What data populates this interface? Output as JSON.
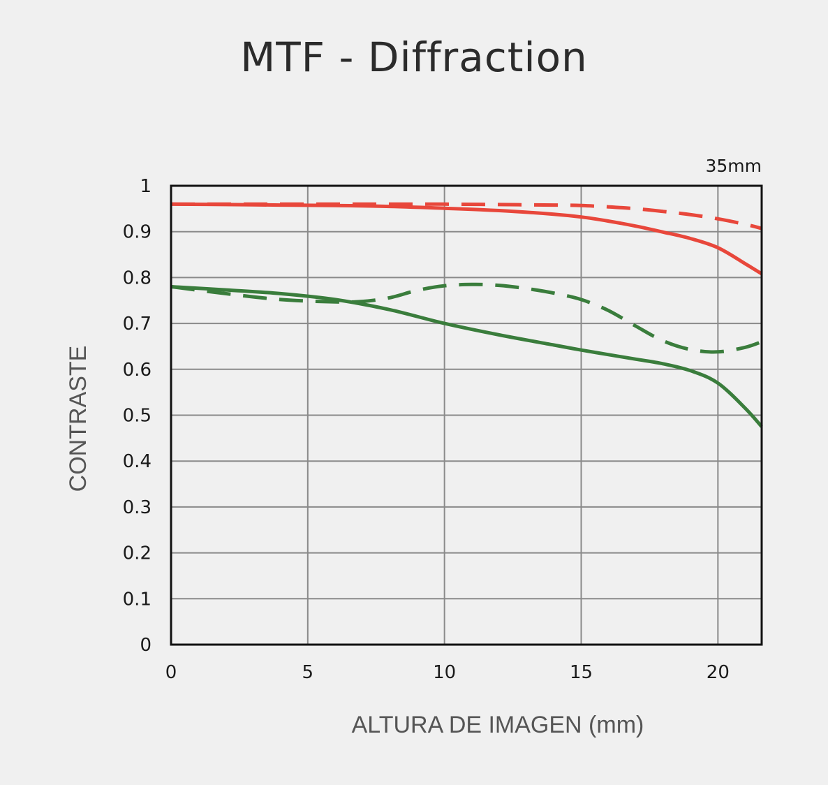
{
  "chart_data": {
    "type": "line",
    "title": "MTF - Diffraction",
    "xlabel": "ALTURA DE IMAGEN (mm)",
    "ylabel": "CONTRASTE",
    "corner_label": "35mm",
    "xlim": [
      0,
      21.6
    ],
    "ylim": [
      0,
      1
    ],
    "x_ticks": [
      "0",
      "5",
      "10",
      "15",
      "20"
    ],
    "y_ticks": [
      "0",
      "0.1",
      "0.2",
      "0.3",
      "0.4",
      "0.5",
      "0.6",
      "0.7",
      "0.8",
      "0.9",
      "1"
    ],
    "grid": true,
    "series": [
      {
        "color": "#e8473b",
        "style": "solid",
        "x": [
          0,
          2,
          4,
          6,
          8,
          10,
          12,
          14,
          15,
          16,
          17,
          18,
          19,
          20,
          21,
          21.6
        ],
        "y": [
          0.96,
          0.959,
          0.958,
          0.957,
          0.955,
          0.951,
          0.946,
          0.938,
          0.932,
          0.923,
          0.912,
          0.899,
          0.885,
          0.865,
          0.83,
          0.808
        ]
      },
      {
        "color": "#e8473b",
        "style": "dashed",
        "x": [
          0,
          2,
          4,
          6,
          8,
          10,
          12,
          14,
          15,
          16,
          17,
          18,
          19,
          20,
          21,
          21.6
        ],
        "y": [
          0.96,
          0.96,
          0.96,
          0.96,
          0.96,
          0.96,
          0.959,
          0.958,
          0.957,
          0.954,
          0.95,
          0.944,
          0.937,
          0.928,
          0.916,
          0.907
        ]
      },
      {
        "color": "#3a7d3c",
        "style": "solid",
        "x": [
          0,
          2,
          4,
          6,
          8,
          10,
          12,
          14,
          15,
          16,
          17,
          18,
          19,
          20,
          21,
          21.6
        ],
        "y": [
          0.78,
          0.773,
          0.765,
          0.752,
          0.73,
          0.7,
          0.675,
          0.653,
          0.642,
          0.632,
          0.622,
          0.612,
          0.597,
          0.57,
          0.515,
          0.475
        ]
      },
      {
        "color": "#3a7d3c",
        "style": "dashed",
        "x": [
          0,
          2,
          4,
          6,
          7,
          8,
          9,
          10,
          11,
          12,
          13,
          14,
          15,
          16,
          17,
          18,
          19,
          20,
          21,
          21.6
        ],
        "y": [
          0.78,
          0.765,
          0.752,
          0.747,
          0.748,
          0.756,
          0.772,
          0.782,
          0.785,
          0.783,
          0.776,
          0.766,
          0.752,
          0.728,
          0.694,
          0.662,
          0.643,
          0.638,
          0.648,
          0.66
        ]
      }
    ]
  }
}
